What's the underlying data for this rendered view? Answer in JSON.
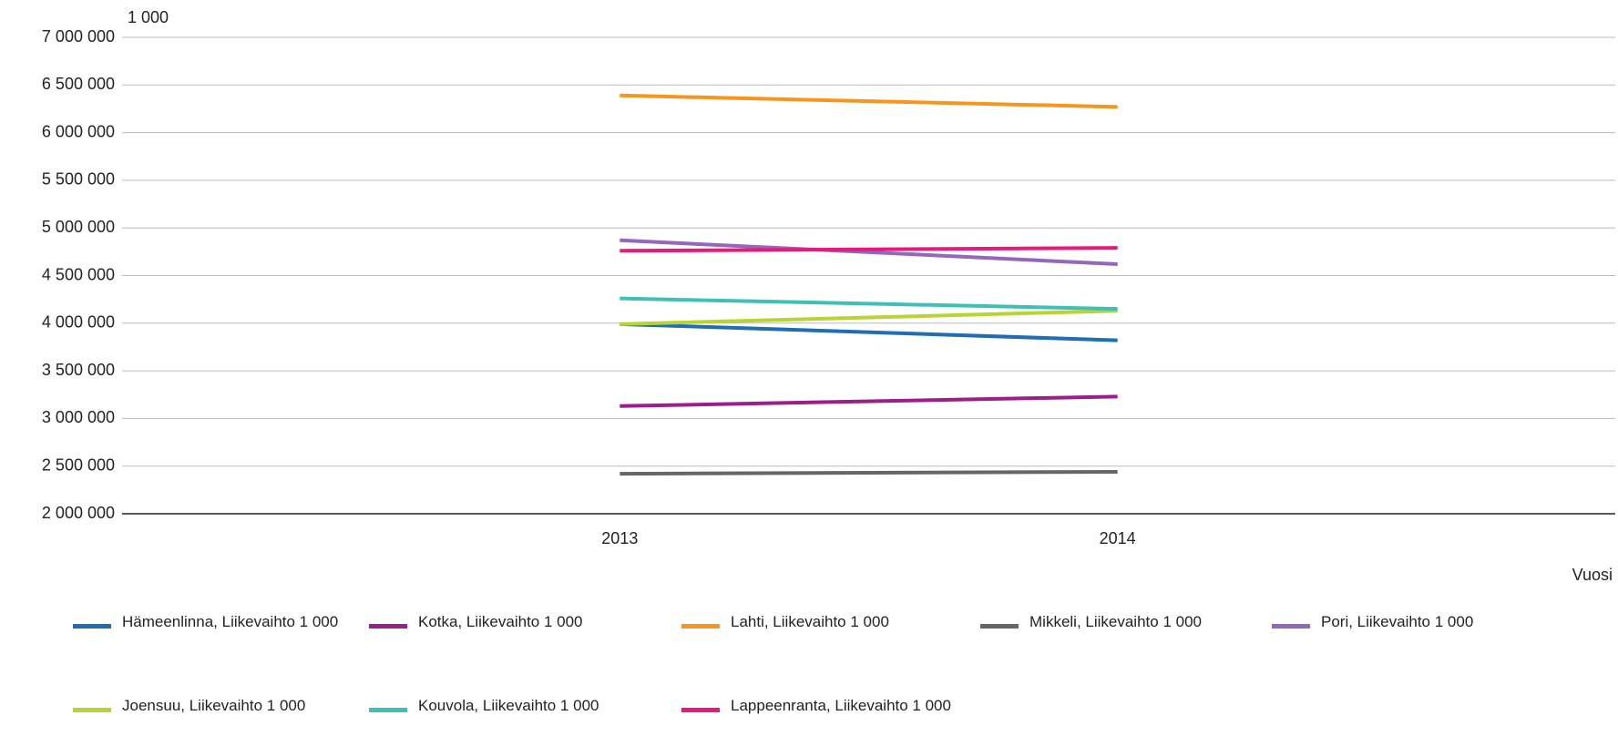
{
  "chart_data": {
    "type": "line",
    "unit_label": "1 000",
    "x_label": "Vuosi",
    "categories": [
      "2013",
      "2014"
    ],
    "ylim": [
      2000000,
      7000000
    ],
    "yticks": [
      {
        "value": 2000000,
        "label": "2 000 000"
      },
      {
        "value": 2500000,
        "label": "2 500 000"
      },
      {
        "value": 3000000,
        "label": "3 000 000"
      },
      {
        "value": 3500000,
        "label": "3 500 000"
      },
      {
        "value": 4000000,
        "label": "4 000 000"
      },
      {
        "value": 4500000,
        "label": "4 500 000"
      },
      {
        "value": 5000000,
        "label": "5 000 000"
      },
      {
        "value": 5500000,
        "label": "5 500 000"
      },
      {
        "value": 6000000,
        "label": "6 000 000"
      },
      {
        "value": 6500000,
        "label": "6 500 000"
      },
      {
        "value": 7000000,
        "label": "7 000 000"
      }
    ],
    "grid": true,
    "series": [
      {
        "name": "Hämeenlinna, Liikevaihto 1 000",
        "color": "#1f6db2",
        "values": [
          3990000,
          3820000
        ]
      },
      {
        "name": "Kotka, Liikevaihto 1 000",
        "color": "#9c1d8c",
        "values": [
          3130000,
          3230000
        ]
      },
      {
        "name": "Lahti, Liikevaihto 1 000",
        "color": "#f7961f",
        "values": [
          6390000,
          6270000
        ]
      },
      {
        "name": "Mikkeli, Liikevaihto 1 000",
        "color": "#666666",
        "values": [
          2420000,
          2440000
        ]
      },
      {
        "name": "Pori, Liikevaihto 1 000",
        "color": "#9467bd",
        "values": [
          4870000,
          4620000
        ]
      },
      {
        "name": "Joensuu, Liikevaihto 1 000",
        "color": "#b8d433",
        "values": [
          3990000,
          4130000
        ]
      },
      {
        "name": "Kouvola, Liikevaihto 1 000",
        "color": "#3fc0b6",
        "values": [
          4260000,
          4150000
        ]
      },
      {
        "name": "Lappeenranta, Liikevaihto 1 000",
        "color": "#e6197c",
        "values": [
          4760000,
          4790000
        ]
      }
    ]
  }
}
